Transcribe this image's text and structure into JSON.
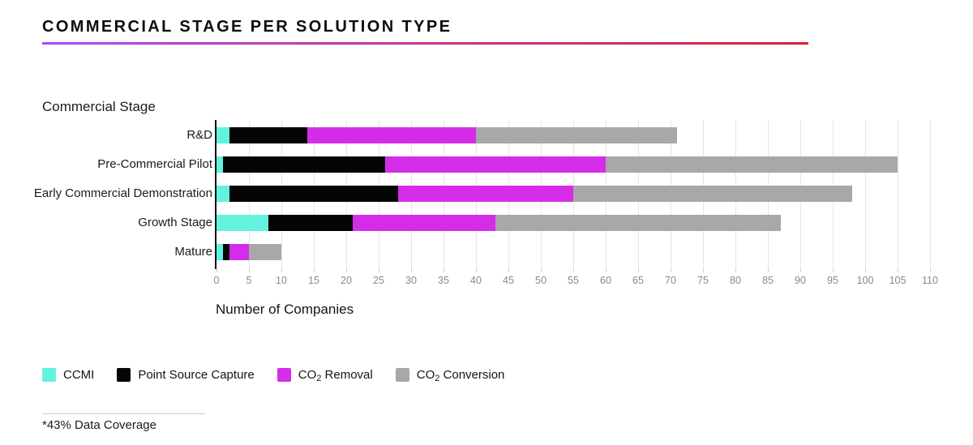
{
  "title": "COMMERCIAL STAGE PER SOLUTION TYPE",
  "footnote": "*43% Data Coverage",
  "colors": {
    "ccmi": "#63F2DE",
    "point_source_capture": "#050505",
    "co2_removal": "#D42DE8",
    "co2_conversion": "#A8A8A8",
    "underline_gradient_start": "#AE49F2",
    "underline_gradient_end": "#DB2036",
    "gridline": "#E5E5E5",
    "axis_line": "#000000",
    "tick_text": "#8A8A8A"
  },
  "legend": {
    "items": [
      {
        "label_pre": "CCMI",
        "label_sub": "",
        "label_post": "",
        "color": "#63F2DE"
      },
      {
        "label_pre": "Point Source Capture",
        "label_sub": "",
        "label_post": "",
        "color": "#050505"
      },
      {
        "label_pre": "CO",
        "label_sub": "2",
        "label_post": " Removal",
        "color": "#D42DE8"
      },
      {
        "label_pre": "CO",
        "label_sub": "2",
        "label_post": " Conversion",
        "color": "#A8A8A8"
      }
    ]
  },
  "chart_data": {
    "type": "bar",
    "orientation": "horizontal",
    "stacked": true,
    "title": "COMMERCIAL STAGE PER SOLUTION TYPE",
    "ylabel": "Commercial Stage",
    "xlabel": "Number of Companies",
    "categories": [
      "R&D",
      "Pre-Commercial Pilot",
      "Early Commercial Demonstration",
      "Growth Stage",
      "Mature"
    ],
    "series": [
      {
        "name": "CCMI",
        "color": "#63F2DE",
        "values": [
          2,
          1,
          2,
          8,
          1
        ]
      },
      {
        "name": "Point Source Capture",
        "color": "#050505",
        "values": [
          12,
          25,
          26,
          13,
          1
        ]
      },
      {
        "name": "CO₂ Removal",
        "color": "#D42DE8",
        "values": [
          26,
          34,
          27,
          22,
          3
        ]
      },
      {
        "name": "CO₂ Conversion",
        "color": "#A8A8A8",
        "values": [
          31,
          45,
          43,
          44,
          5
        ]
      }
    ],
    "totals": [
      71,
      105,
      98,
      87,
      10
    ],
    "xlim": [
      0,
      110
    ],
    "xticks": [
      0,
      5,
      10,
      15,
      20,
      25,
      30,
      35,
      40,
      45,
      50,
      55,
      60,
      65,
      70,
      75,
      80,
      85,
      90,
      95,
      100,
      105,
      110
    ],
    "grid": true,
    "legend_position": "bottom",
    "footnote": "*43% Data Coverage"
  }
}
